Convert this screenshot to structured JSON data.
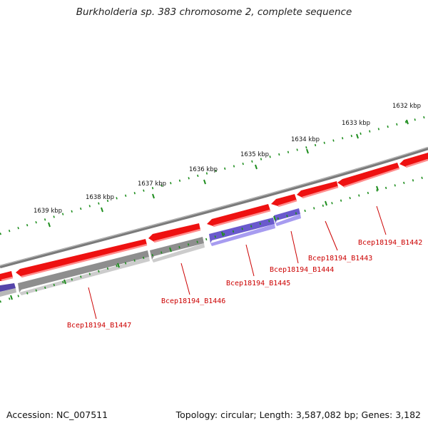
{
  "title": "Burkholderia sp. 383 chromosome 2, complete sequence",
  "footer": {
    "accession": "Accession: NC_007511",
    "summary": "Topology: circular; Length: 3,587,082 bp; Genes: 3,182"
  },
  "colors": {
    "backbone": "#8a8a8a",
    "forward_gene": "#ee1111",
    "reverse_gene": "#7766dd",
    "pseudo_gene": "#b5b5b5",
    "tick": "#1e8e1e",
    "gene_label": "#cc0000"
  },
  "tick_labels": [
    "1632 kbp",
    "1633 kbp",
    "1634 kbp",
    "1635 kbp",
    "1636 kbp",
    "1637 kbp",
    "1638 kbp",
    "1639 kbp"
  ],
  "gene_labels": [
    "Bcep18194_B1442",
    "Bcep18194_B1443",
    "Bcep18194_B1444",
    "Bcep18194_B1445",
    "Bcep18194_B1446",
    "Bcep18194_B1447"
  ]
}
